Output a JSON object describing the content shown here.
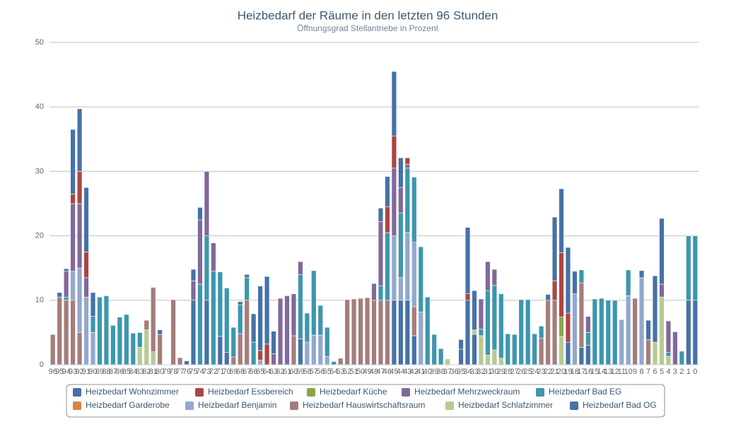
{
  "chart_data": {
    "type": "bar",
    "stacked": true,
    "title": "Heizbedarf der Räume in den letzten 96 Stunden",
    "subtitle": "Öffnungsgrad Stellantriebe in Prozent",
    "categories": [
      "96",
      "95",
      "94",
      "93",
      "92",
      "91",
      "90",
      "89",
      "88",
      "87",
      "86",
      "85",
      "84",
      "83",
      "82",
      "81",
      "80",
      "79",
      "78",
      "77",
      "76",
      "75",
      "74",
      "73",
      "72",
      "71",
      "70",
      "69",
      "68",
      "67",
      "66",
      "65",
      "64",
      "63",
      "62",
      "61",
      "60",
      "59",
      "58",
      "57",
      "56",
      "55",
      "54",
      "53",
      "52",
      "51",
      "50",
      "49",
      "48",
      "47",
      "46",
      "45",
      "44",
      "43",
      "42",
      "41",
      "40",
      "39",
      "38",
      "37",
      "36",
      "35",
      "34",
      "33",
      "32",
      "31",
      "30",
      "29",
      "28",
      "27",
      "26",
      "25",
      "24",
      "23",
      "22",
      "21",
      "20",
      "19",
      "18",
      "17",
      "16",
      "15",
      "14",
      "13",
      "12",
      "11",
      "10",
      "9",
      "8",
      "7",
      "6",
      "5",
      "4",
      "3",
      "2",
      "1",
      "0"
    ],
    "ylim": [
      0,
      50
    ],
    "yticks": [
      0,
      10,
      20,
      30,
      40,
      50
    ],
    "grid": true,
    "series": [
      {
        "name": "Heizbedarf Wohnzimmer",
        "color": "#4572A7",
        "values": [
          0,
          0.7,
          0.4,
          10,
          9.7,
          10,
          3.7,
          0,
          0,
          0,
          0,
          0,
          0,
          0,
          0,
          0,
          0.7,
          0,
          0,
          0,
          0.6,
          1.8,
          1.9,
          0,
          0,
          0,
          0,
          0,
          0.5,
          0.5,
          4.4,
          10,
          10.5,
          3.5,
          0,
          0,
          0,
          0,
          0,
          0,
          0,
          0,
          0,
          0,
          0,
          0,
          0,
          0,
          0,
          2.1,
          4.7,
          10,
          4.6,
          0,
          0,
          0,
          0,
          0,
          0,
          0,
          0,
          1.5,
          10.3,
          6.1,
          0,
          0,
          0,
          0,
          0,
          0,
          0,
          0,
          0,
          0,
          0.9,
          9.9,
          9.9,
          10.2,
          3.5,
          0,
          0,
          0,
          0,
          0,
          0,
          0,
          0,
          0,
          1.1,
          3,
          10.3,
          10.2,
          0,
          0,
          0,
          0,
          0
        ]
      },
      {
        "name": "Heizbedarf Essbereich",
        "color": "#AA4643",
        "values": [
          0,
          0,
          0,
          1.5,
          5,
          4,
          0,
          0,
          0,
          0,
          0,
          0,
          0,
          0,
          0,
          0,
          0,
          0,
          0,
          0,
          0,
          0,
          0,
          0,
          0,
          0,
          0,
          0,
          0,
          0,
          0,
          1.5,
          3.2,
          0,
          0,
          0,
          0,
          0,
          0,
          0,
          0,
          0,
          0,
          0,
          0,
          0,
          0,
          0,
          0,
          0,
          4,
          5,
          0,
          1,
          0,
          0,
          0,
          0,
          0,
          0,
          0,
          0,
          1,
          0,
          0,
          0,
          0,
          0,
          0,
          0,
          0,
          0,
          0,
          0,
          0,
          3,
          10,
          4.5,
          0,
          0,
          0,
          0,
          0,
          0,
          0,
          0,
          0,
          0,
          0,
          0,
          0,
          0,
          0,
          0,
          0,
          0,
          0
        ]
      },
      {
        "name": "Heizbedarf Küche",
        "color": "#89A54E",
        "values": [
          0,
          0,
          0,
          0,
          0,
          0,
          0,
          0,
          0,
          0,
          0,
          0,
          0,
          0,
          0,
          0,
          0,
          0,
          0,
          0,
          0,
          0,
          0,
          0,
          0,
          0,
          0,
          0,
          0,
          0,
          0,
          0,
          0,
          0,
          0,
          0,
          0,
          0,
          0,
          0,
          0,
          0,
          0,
          0,
          0,
          0,
          0,
          0,
          0,
          0,
          0,
          0,
          0,
          0,
          0,
          0,
          0,
          0,
          0,
          0,
          0,
          0,
          0,
          0,
          0,
          0,
          0,
          0,
          0,
          0,
          0,
          0,
          0,
          0,
          0,
          0,
          3,
          0,
          0,
          0,
          0,
          0,
          0,
          0,
          0,
          0,
          0,
          0,
          0,
          0,
          0,
          0,
          0,
          0,
          0,
          0,
          0
        ]
      },
      {
        "name": "Heizbedarf Mehrzweckraum",
        "color": "#80699B",
        "values": [
          0,
          0,
          4,
          10.5,
          10,
          3,
          0,
          0,
          0,
          0,
          0,
          0,
          0,
          0,
          0,
          0,
          0,
          0,
          0,
          0,
          0,
          3,
          10,
          10,
          4.4,
          0,
          0,
          0,
          0,
          0,
          0,
          0,
          0,
          1.7,
          10.3,
          10.7,
          6.5,
          2,
          0,
          0,
          0,
          0,
          0,
          0,
          0,
          0,
          0,
          0,
          2.6,
          10,
          0,
          10.5,
          4,
          0.6,
          0,
          0,
          0,
          0,
          0,
          0,
          0,
          0,
          0,
          0,
          4.7,
          4.5,
          2.5,
          0,
          0,
          0,
          0,
          0,
          0,
          0,
          0,
          0,
          0,
          0,
          0,
          0,
          2.5,
          0,
          0,
          0,
          0,
          0,
          0,
          0,
          0,
          0,
          0,
          2,
          4.9,
          5.1,
          0,
          0,
          0
        ]
      },
      {
        "name": "Heizbedarf Bad EG",
        "color": "#3D96AE",
        "values": [
          0,
          0,
          0.5,
          0,
          0,
          0,
          2.5,
          10.5,
          10.7,
          6.1,
          7.4,
          7.8,
          4.9,
          2.3,
          0,
          0,
          0,
          0,
          0,
          0,
          0,
          0,
          12.5,
          10,
          14.5,
          10,
          10,
          4.6,
          4.5,
          3.5,
          3.5,
          0,
          0,
          0,
          0,
          0,
          0,
          10,
          4.5,
          10,
          4.6,
          4.5,
          0.5,
          0,
          0,
          0,
          0,
          0,
          0,
          2.2,
          10.5,
          0,
          10,
          10,
          10.1,
          10.1,
          10.5,
          4.7,
          2.5,
          0,
          0,
          0,
          0,
          0,
          1,
          10,
          10,
          10,
          4.8,
          4.7,
          10.1,
          10.1,
          4.8,
          1.9,
          0,
          0,
          0,
          0,
          0,
          2,
          2,
          10.2,
          10.3,
          10,
          10,
          0,
          4,
          0,
          0,
          0,
          0,
          0,
          0.6,
          0,
          2.1,
          10,
          10
        ]
      },
      {
        "name": "Heizbedarf Garderobe",
        "color": "#DB843D",
        "values": [
          0,
          0,
          0,
          0,
          0,
          0,
          0,
          0,
          0,
          0,
          0,
          0,
          0,
          0,
          0,
          0,
          0,
          0,
          0,
          0,
          0,
          0,
          0,
          0,
          0,
          0,
          0,
          0,
          0,
          0,
          0,
          0,
          0,
          0,
          0,
          0,
          0,
          0,
          0,
          0,
          0,
          0,
          0,
          0,
          0,
          0,
          0,
          0,
          0,
          0,
          0,
          0,
          0,
          0,
          0,
          0,
          0,
          0,
          0,
          0,
          0,
          0,
          0,
          0,
          0,
          0,
          0,
          0,
          0,
          0,
          0,
          0,
          0,
          0,
          0,
          0,
          0,
          0,
          0,
          0,
          0,
          0,
          0,
          0,
          0,
          0,
          0,
          0,
          0,
          0,
          0,
          0,
          0,
          0,
          0,
          0,
          0
        ]
      },
      {
        "name": "Heizbedarf Benjamin",
        "color": "#92A8CD",
        "values": [
          0,
          0,
          0,
          4.5,
          10,
          10.5,
          5,
          0,
          0,
          0,
          0,
          0,
          0,
          0,
          0,
          0,
          0,
          0,
          0,
          0,
          0,
          0,
          0,
          0,
          0,
          0,
          0,
          0,
          0,
          0,
          0,
          0.7,
          0,
          0,
          0,
          0,
          0,
          0,
          3.5,
          4.6,
          4.6,
          1.3,
          0,
          0,
          0,
          0,
          0,
          0,
          0,
          0,
          0,
          10,
          3.5,
          10.5,
          10,
          8.2,
          0,
          0,
          0,
          0,
          0,
          0,
          0,
          0,
          0,
          0,
          0,
          0,
          0,
          0,
          0,
          0,
          0,
          0,
          0,
          0,
          0,
          0,
          11,
          0,
          0,
          0,
          0,
          0,
          0,
          7,
          10.7,
          0,
          13.5,
          0,
          0,
          0,
          0,
          0,
          0,
          0,
          0
        ]
      },
      {
        "name": "Heizbedarf Hauswirtschaftsraum",
        "color": "#A47D7C",
        "values": [
          4.7,
          10.5,
          10,
          10,
          5,
          0,
          0,
          0,
          0,
          0,
          0,
          0,
          0,
          0,
          1.5,
          10,
          4.7,
          0,
          10.1,
          1.1,
          0,
          0,
          0,
          0,
          0,
          0,
          0,
          1.2,
          4.8,
          10,
          0,
          0,
          0,
          0,
          0,
          0,
          4.5,
          0,
          0,
          0,
          0,
          0,
          0,
          1,
          10.1,
          10.2,
          10.3,
          10.4,
          10,
          10,
          10,
          0,
          0,
          0,
          4.5,
          0,
          0,
          0,
          0,
          0,
          0,
          0,
          0,
          0,
          0,
          0,
          0,
          0,
          0,
          0,
          0,
          0,
          0,
          4.1,
          10,
          10,
          0,
          0,
          0,
          10,
          0,
          0,
          0,
          0,
          0,
          0,
          0,
          10.3,
          0,
          3.9,
          0,
          0,
          0,
          0,
          0,
          0,
          0
        ]
      },
      {
        "name": "Heizbedarf Schlafzimmer",
        "color": "#B5CA92",
        "values": [
          0,
          0,
          0,
          0,
          0,
          0,
          0,
          0,
          0,
          0,
          0,
          0,
          0,
          2.7,
          5.4,
          2,
          0,
          0,
          0,
          0,
          0,
          0,
          0,
          0,
          0,
          0,
          0,
          0,
          0,
          0,
          0,
          0,
          0,
          0,
          0,
          0,
          0,
          0,
          0,
          0,
          0,
          0,
          0,
          0,
          0,
          0,
          0,
          0,
          0,
          0,
          0,
          0,
          0,
          0,
          0,
          0,
          0,
          0,
          0,
          0.9,
          0,
          0,
          0,
          0.7,
          4.5,
          1.5,
          2.3,
          1,
          0,
          0,
          0,
          0,
          0,
          0,
          0,
          0,
          4.4,
          0,
          0,
          0,
          0,
          0,
          0,
          0,
          0,
          0,
          0,
          0,
          0,
          0,
          3.5,
          10.5,
          1.3,
          0,
          0,
          0,
          0
        ]
      },
      {
        "name": "Heizbedarf Bad OG",
        "color": "#4572A7",
        "values": [
          0,
          0,
          0,
          0,
          0,
          0,
          0,
          0,
          0,
          0,
          0,
          0,
          0,
          0,
          0,
          0,
          0,
          0,
          0,
          0,
          0,
          10,
          0,
          10,
          0,
          4.4,
          1.9,
          0,
          0,
          0,
          0,
          0,
          0,
          0,
          0,
          0,
          0,
          4,
          0,
          0,
          0,
          0,
          0,
          0,
          0,
          0,
          0,
          0,
          0,
          0,
          0,
          10,
          10,
          10,
          4.5,
          0,
          0,
          0,
          0,
          0,
          0,
          2.4,
          10,
          4.7,
          0,
          0,
          0,
          0,
          0,
          0,
          0,
          0,
          0,
          0,
          0,
          0,
          0,
          3.5,
          0,
          2.7,
          3,
          0,
          0,
          0,
          0,
          0,
          0,
          0,
          0,
          0,
          0,
          0,
          0,
          0,
          0,
          10,
          10
        ]
      }
    ]
  }
}
